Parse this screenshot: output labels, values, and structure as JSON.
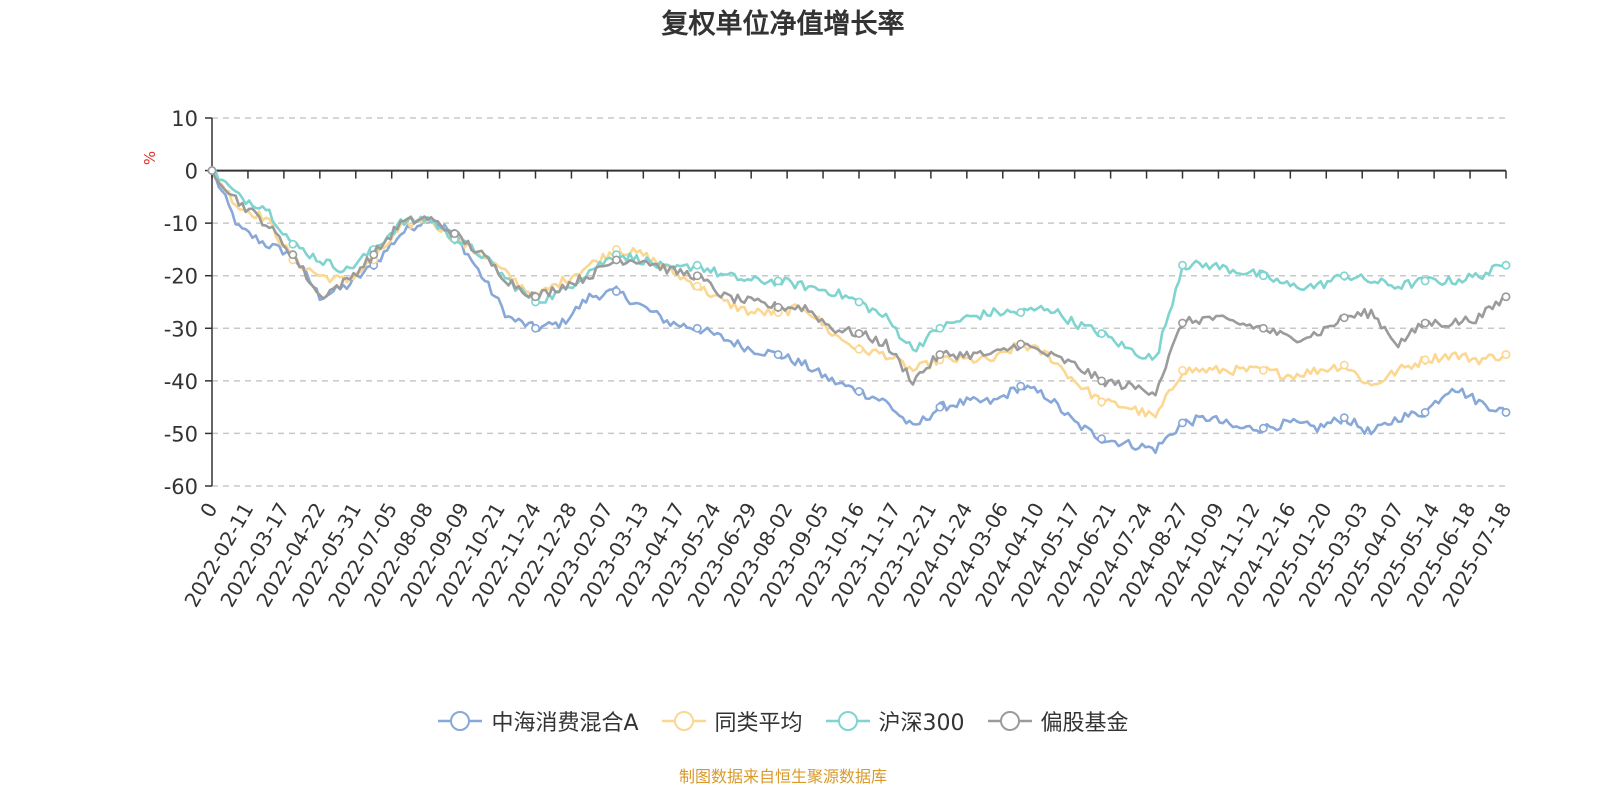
{
  "title": "复权单位净值增长率",
  "source_note": "制图数据来自恒生聚源数据库",
  "chart_data": {
    "type": "line",
    "title": "复权单位净值增长率",
    "ylabel": "%",
    "ylim": [
      -60,
      10
    ],
    "yticks": [
      10,
      0,
      -10,
      -20,
      -30,
      -40,
      -50,
      -60
    ],
    "y_grid": "dashed",
    "legend_position": "bottom",
    "x_tick_labels": [
      "0",
      "2022-02-11",
      "2022-03-17",
      "2022-04-22",
      "2022-05-31",
      "2022-07-05",
      "2022-08-08",
      "2022-09-09",
      "2022-10-21",
      "2022-11-24",
      "2022-12-28",
      "2023-02-07",
      "2023-03-13",
      "2023-04-17",
      "2023-05-24",
      "2023-06-29",
      "2023-08-02",
      "2023-09-05",
      "2023-10-16",
      "2023-11-17",
      "2023-12-21",
      "2024-01-24",
      "2024-03-06",
      "2024-04-10",
      "2024-05-17",
      "2024-06-21",
      "2024-07-24",
      "2024-08-27",
      "2024-10-09",
      "2024-11-12",
      "2024-12-16",
      "2025-01-20",
      "2025-03-03",
      "2025-04-07",
      "2025-05-14",
      "2025-06-18",
      "2025-07-18"
    ],
    "series": [
      {
        "name": "中海消费混合A",
        "color": "#87a8d8",
        "values": [
          0,
          -11,
          -14,
          -16,
          -24,
          -22,
          -18,
          -12,
          -9,
          -12,
          -20,
          -28,
          -30,
          -29,
          -24,
          -23,
          -26,
          -29,
          -30,
          -32,
          -34,
          -35,
          -37,
          -40,
          -42,
          -44,
          -49,
          -45,
          -44,
          -44,
          -41,
          -43,
          -48,
          -51,
          -52,
          -53,
          -48,
          -47,
          -49,
          -49,
          -48,
          -49,
          -47,
          -50,
          -47,
          -46,
          -41,
          -44,
          -46
        ]
      },
      {
        "name": "同类平均",
        "color": "#fcd791",
        "values": [
          0,
          -7,
          -9,
          -17,
          -20,
          -21,
          -17,
          -11,
          -9,
          -13,
          -16,
          -20,
          -24,
          -21,
          -18,
          -15,
          -16,
          -19,
          -22,
          -25,
          -27,
          -27,
          -26,
          -31,
          -34,
          -35,
          -38,
          -36,
          -36,
          -36,
          -33,
          -35,
          -40,
          -44,
          -45,
          -47,
          -38,
          -38,
          -38,
          -38,
          -39,
          -38,
          -37,
          -41,
          -38,
          -36,
          -35,
          -36,
          -35
        ]
      },
      {
        "name": "沪深300",
        "color": "#7fd4d0",
        "values": [
          0,
          -5,
          -7,
          -14,
          -17,
          -19,
          -15,
          -10,
          -9,
          -13,
          -16,
          -21,
          -25,
          -23,
          -19,
          -16,
          -17,
          -19,
          -18,
          -20,
          -21,
          -21,
          -22,
          -23,
          -25,
          -28,
          -34,
          -30,
          -28,
          -27,
          -27,
          -26,
          -29,
          -31,
          -34,
          -36,
          -18,
          -18,
          -19,
          -20,
          -22,
          -22,
          -20,
          -21,
          -22,
          -21,
          -21,
          -20,
          -18
        ]
      },
      {
        "name": "偏股基金",
        "color": "#9b9b9b",
        "values": [
          0,
          -6,
          -10,
          -16,
          -24,
          -21,
          -16,
          -10,
          -9,
          -12,
          -16,
          -21,
          -24,
          -22,
          -20,
          -17,
          -17,
          -19,
          -20,
          -24,
          -25,
          -26,
          -26,
          -30,
          -31,
          -33,
          -40,
          -35,
          -35,
          -35,
          -33,
          -35,
          -37,
          -40,
          -41,
          -42,
          -29,
          -28,
          -29,
          -30,
          -32,
          -31,
          -28,
          -27,
          -33,
          -29,
          -29,
          -28,
          -24
        ]
      }
    ]
  }
}
